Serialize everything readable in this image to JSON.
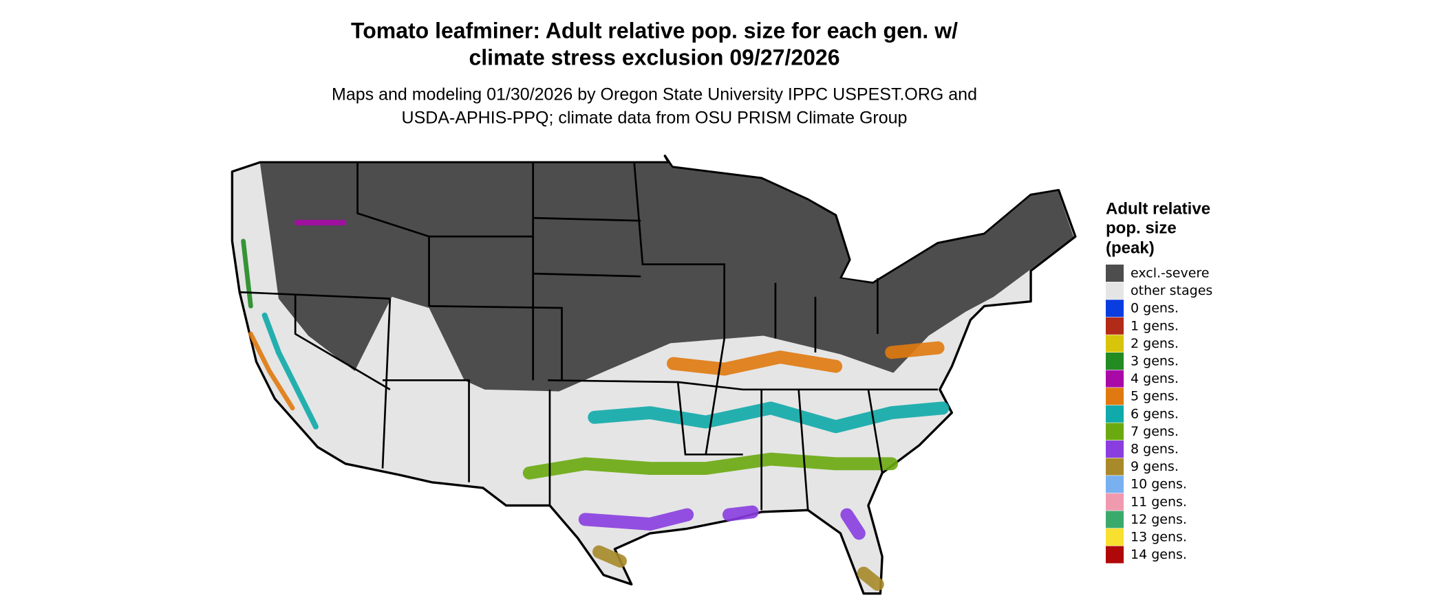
{
  "title": [
    "Tomato leafminer: Adult relative pop. size for each gen. w/",
    "climate stress exclusion 09/27/2026"
  ],
  "subtitle": [
    "Maps and modeling 01/30/2026 by Oregon State University IPPC USPEST.ORG and",
    "USDA-APHIS-PPQ; climate data from OSU PRISM Climate Group"
  ],
  "legend": {
    "title": [
      "Adult relative",
      "pop. size",
      "(peak)"
    ],
    "items": [
      {
        "label": "excl.-severe",
        "color": "#4d4d4d"
      },
      {
        "label": "other stages",
        "color": "#e5e5e5"
      },
      {
        "label": "0 gens.",
        "color": "#0a3de0"
      },
      {
        "label": "1 gens.",
        "color": "#b22a18"
      },
      {
        "label": "2 gens.",
        "color": "#d8c40a"
      },
      {
        "label": "3 gens.",
        "color": "#228b22"
      },
      {
        "label": "4 gens.",
        "color": "#a80aa8"
      },
      {
        "label": "5 gens.",
        "color": "#e07a10"
      },
      {
        "label": "6 gens.",
        "color": "#10aaaa"
      },
      {
        "label": "7 gens.",
        "color": "#6aaa10"
      },
      {
        "label": "8 gens.",
        "color": "#8a3ee0"
      },
      {
        "label": "9 gens.",
        "color": "#a88a2a"
      },
      {
        "label": "10 gens.",
        "color": "#78b0f0"
      },
      {
        "label": "11 gens.",
        "color": "#f09ab0"
      },
      {
        "label": "12 gens.",
        "color": "#3aaa6a"
      },
      {
        "label": "13 gens.",
        "color": "#f8e030"
      },
      {
        "label": "14 gens.",
        "color": "#b00808"
      }
    ]
  }
}
